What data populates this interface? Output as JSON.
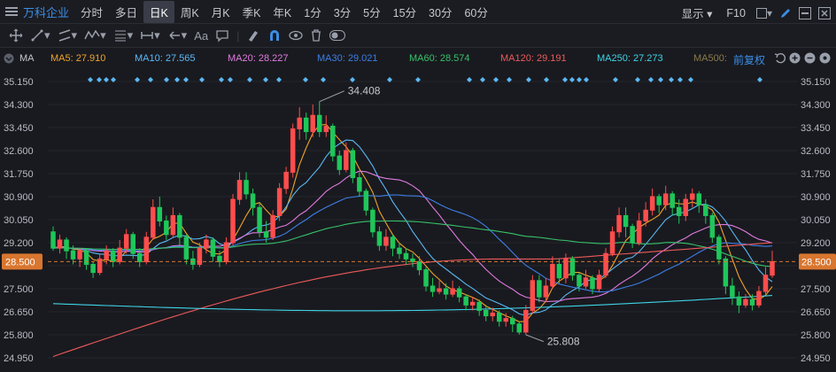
{
  "header": {
    "title": "万科企业",
    "periods": [
      "分时",
      "多日",
      "日K",
      "周K",
      "月K",
      "季K",
      "年K",
      "1分",
      "3分",
      "5分",
      "15分",
      "30分",
      "60分"
    ],
    "active_period": "日K",
    "display_label": "显示",
    "f10_label": "F10"
  },
  "toolbar": {
    "aa_label": "Aa"
  },
  "ma_bar": {
    "label": "MA",
    "items": [
      {
        "text": "MA5: 27.910",
        "color": "#f0a32a"
      },
      {
        "text": "MA10: 27.565",
        "color": "#5bb8f5"
      },
      {
        "text": "MA20: 28.227",
        "color": "#e07be0"
      },
      {
        "text": "MA30: 29.021",
        "color": "#3d7fe6"
      },
      {
        "text": "MA60: 28.574",
        "color": "#36c26b"
      },
      {
        "text": "MA120: 29.191",
        "color": "#ec5a5a"
      },
      {
        "text": "MA250: 27.273",
        "color": "#3fd3e6"
      },
      {
        "text": "MA500:",
        "color": "#8a7a4a"
      }
    ],
    "adjust_label": "前复权"
  },
  "chart_data": {
    "type": "candlestick",
    "y_ticks": [
      "35.150",
      "34.300",
      "33.450",
      "32.600",
      "31.750",
      "30.900",
      "30.050",
      "29.200",
      "28.350",
      "27.500",
      "26.650",
      "25.800",
      "24.950"
    ],
    "ylim": [
      24.95,
      35.15
    ],
    "current_price": "28.500",
    "high_annotation": "34.408",
    "low_annotation": "25.808",
    "up_color": "#ff4d4d",
    "down_color": "#1fc75a",
    "candles": [
      [
        29.6,
        29.0,
        29.8,
        28.9
      ],
      [
        29.0,
        29.3,
        29.5,
        28.8
      ],
      [
        29.3,
        28.9,
        29.4,
        28.6
      ],
      [
        28.9,
        28.6,
        29.1,
        28.4
      ],
      [
        28.6,
        28.9,
        29.0,
        28.3
      ],
      [
        28.9,
        28.4,
        29.0,
        28.2
      ],
      [
        28.4,
        28.1,
        28.5,
        27.9
      ],
      [
        28.1,
        28.6,
        28.8,
        28.0
      ],
      [
        28.6,
        28.9,
        29.1,
        28.4
      ],
      [
        28.9,
        28.5,
        29.0,
        28.3
      ],
      [
        28.5,
        29.0,
        29.3,
        28.4
      ],
      [
        29.0,
        29.5,
        29.7,
        28.8
      ],
      [
        29.5,
        28.8,
        29.6,
        28.6
      ],
      [
        28.8,
        28.5,
        29.0,
        28.3
      ],
      [
        28.5,
        29.4,
        29.6,
        28.4
      ],
      [
        29.4,
        30.5,
        30.8,
        29.3
      ],
      [
        30.5,
        30.0,
        30.9,
        29.8
      ],
      [
        30.0,
        29.5,
        30.2,
        29.3
      ],
      [
        29.5,
        30.2,
        30.5,
        29.4
      ],
      [
        30.2,
        29.4,
        30.3,
        29.1
      ],
      [
        29.4,
        28.6,
        29.5,
        28.4
      ],
      [
        28.6,
        28.4,
        28.9,
        28.2
      ],
      [
        28.4,
        29.0,
        29.2,
        28.3
      ],
      [
        29.0,
        29.3,
        29.5,
        28.8
      ],
      [
        29.3,
        28.7,
        29.4,
        28.5
      ],
      [
        28.7,
        28.5,
        28.9,
        28.3
      ],
      [
        28.5,
        29.2,
        29.4,
        28.4
      ],
      [
        29.2,
        30.8,
        31.0,
        29.1
      ],
      [
        30.8,
        31.5,
        31.8,
        30.6
      ],
      [
        31.5,
        31.0,
        31.8,
        30.8
      ],
      [
        31.0,
        30.5,
        31.2,
        30.2
      ],
      [
        30.5,
        29.6,
        30.7,
        29.4
      ],
      [
        29.6,
        29.4,
        30.0,
        29.2
      ],
      [
        29.4,
        30.2,
        30.4,
        29.3
      ],
      [
        30.2,
        31.2,
        31.4,
        30.0
      ],
      [
        31.2,
        31.8,
        32.0,
        31.0
      ],
      [
        31.8,
        33.4,
        33.6,
        31.6
      ],
      [
        33.4,
        33.8,
        34.2,
        33.0
      ],
      [
        33.8,
        33.3,
        34.0,
        33.0
      ],
      [
        33.3,
        33.9,
        34.3,
        33.1
      ],
      [
        33.9,
        33.3,
        34.408,
        33.1
      ],
      [
        33.3,
        33.5,
        33.9,
        33.1
      ],
      [
        33.5,
        32.4,
        33.6,
        32.2
      ],
      [
        32.4,
        31.9,
        32.6,
        31.7
      ],
      [
        31.9,
        32.6,
        32.9,
        31.8
      ],
      [
        32.6,
        31.6,
        32.7,
        31.4
      ],
      [
        31.6,
        31.1,
        31.8,
        30.9
      ],
      [
        31.1,
        30.4,
        31.2,
        30.2
      ],
      [
        30.4,
        29.6,
        30.5,
        29.4
      ],
      [
        29.6,
        29.1,
        29.8,
        28.9
      ],
      [
        29.1,
        29.4,
        29.7,
        28.9
      ],
      [
        29.4,
        29.0,
        29.5,
        28.7
      ],
      [
        29.0,
        28.8,
        29.2,
        28.6
      ],
      [
        28.8,
        28.6,
        29.0,
        28.4
      ],
      [
        28.6,
        28.5,
        28.8,
        28.3
      ],
      [
        28.5,
        28.2,
        28.7,
        28.0
      ],
      [
        28.2,
        27.6,
        28.3,
        27.4
      ],
      [
        27.6,
        27.4,
        27.9,
        27.2
      ],
      [
        27.4,
        27.5,
        27.8,
        27.3
      ],
      [
        27.5,
        27.3,
        27.7,
        27.1
      ],
      [
        27.3,
        27.5,
        27.8,
        27.2
      ],
      [
        27.5,
        27.2,
        27.6,
        27.0
      ],
      [
        27.2,
        26.9,
        27.3,
        26.7
      ],
      [
        26.9,
        27.0,
        27.2,
        26.7
      ],
      [
        27.0,
        26.7,
        27.1,
        26.5
      ],
      [
        26.7,
        26.5,
        26.9,
        26.3
      ],
      [
        26.5,
        26.6,
        26.8,
        26.3
      ],
      [
        26.6,
        26.3,
        26.7,
        26.1
      ],
      [
        26.3,
        26.4,
        26.6,
        26.1
      ],
      [
        26.4,
        26.2,
        26.5,
        25.9
      ],
      [
        26.2,
        25.9,
        26.3,
        25.808
      ],
      [
        25.9,
        26.7,
        26.9,
        25.8
      ],
      [
        26.7,
        27.8,
        28.0,
        26.6
      ],
      [
        27.8,
        27.2,
        28.0,
        27.0
      ],
      [
        27.2,
        27.6,
        27.9,
        27.0
      ],
      [
        27.6,
        28.4,
        28.7,
        27.5
      ],
      [
        28.4,
        27.9,
        28.6,
        27.7
      ],
      [
        27.9,
        28.6,
        28.8,
        27.7
      ],
      [
        28.6,
        28.0,
        28.7,
        27.8
      ],
      [
        28.0,
        27.6,
        28.1,
        27.4
      ],
      [
        27.6,
        27.9,
        28.2,
        27.5
      ],
      [
        27.9,
        27.5,
        28.0,
        27.3
      ],
      [
        27.5,
        28.0,
        28.2,
        27.4
      ],
      [
        28.0,
        28.8,
        29.0,
        27.9
      ],
      [
        28.8,
        29.6,
        29.8,
        28.7
      ],
      [
        29.6,
        30.2,
        30.5,
        29.4
      ],
      [
        30.2,
        29.8,
        30.5,
        29.4
      ],
      [
        29.8,
        29.2,
        29.9,
        29.0
      ],
      [
        29.2,
        30.0,
        30.3,
        29.1
      ],
      [
        30.0,
        30.4,
        30.7,
        29.8
      ],
      [
        30.4,
        30.9,
        31.2,
        30.2
      ],
      [
        30.9,
        30.6,
        31.0,
        30.3
      ],
      [
        30.6,
        31.0,
        31.3,
        30.4
      ],
      [
        31.0,
        30.5,
        31.1,
        30.2
      ],
      [
        30.5,
        30.2,
        30.8,
        29.9
      ],
      [
        30.2,
        30.8,
        31.0,
        30.0
      ],
      [
        30.8,
        31.0,
        31.2,
        30.5
      ],
      [
        31.0,
        30.6,
        31.1,
        30.3
      ],
      [
        30.6,
        30.2,
        30.8,
        29.9
      ],
      [
        30.2,
        29.4,
        30.3,
        29.2
      ],
      [
        29.4,
        28.6,
        29.5,
        28.4
      ],
      [
        28.6,
        27.6,
        28.7,
        27.3
      ],
      [
        27.6,
        27.2,
        27.9,
        26.9
      ],
      [
        27.2,
        26.9,
        27.4,
        26.6
      ],
      [
        26.9,
        27.1,
        27.3,
        26.8
      ],
      [
        27.1,
        26.9,
        27.3,
        26.7
      ],
      [
        26.9,
        27.4,
        27.6,
        26.8
      ],
      [
        27.4,
        28.0,
        28.3,
        27.3
      ],
      [
        28.0,
        28.5,
        28.9,
        27.9
      ]
    ]
  }
}
